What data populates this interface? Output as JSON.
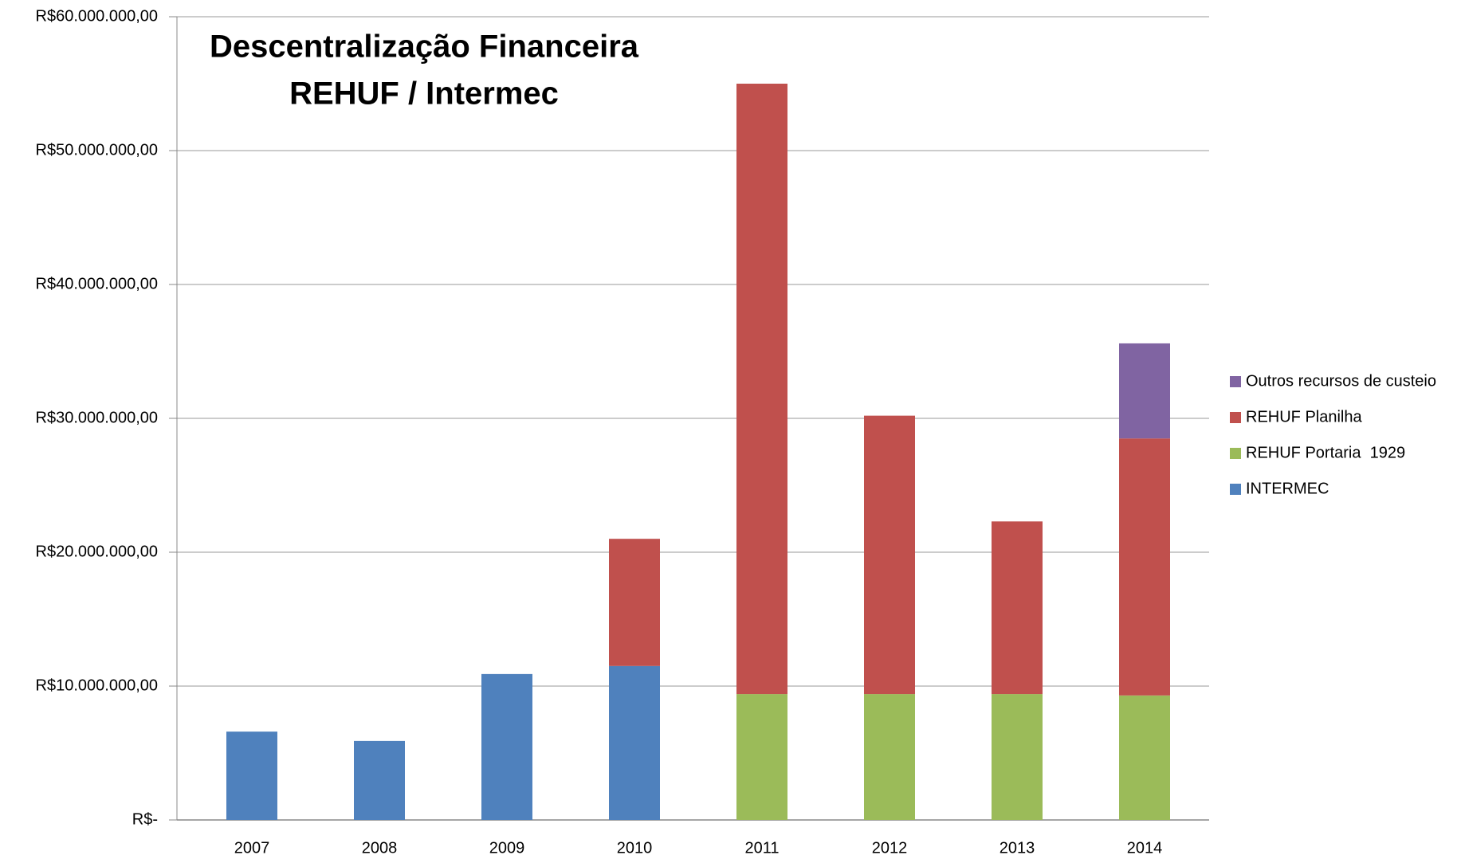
{
  "chart_data": {
    "type": "stacked-bar",
    "title": [
      "Descentralização Financeira",
      "REHUF / Intermec"
    ],
    "categories": [
      "2007",
      "2008",
      "2009",
      "2010",
      "2011",
      "2012",
      "2013",
      "2014"
    ],
    "series": [
      {
        "name": "INTERMEC",
        "color": "#4f81bd",
        "values": [
          6600000,
          5900000,
          10900000,
          11500000,
          null,
          null,
          null,
          null
        ]
      },
      {
        "name": "REHUF Portaria  1929",
        "color": "#9bbb59",
        "values": [
          null,
          null,
          null,
          null,
          9400000,
          9400000,
          9400000,
          9300000
        ]
      },
      {
        "name": "REHUF Planilha",
        "color": "#c0504d",
        "values": [
          null,
          null,
          null,
          9500000,
          45600000,
          20800000,
          12900000,
          19200000
        ]
      },
      {
        "name": "Outros recursos de custeio",
        "color": "#8064a2",
        "values": [
          null,
          null,
          null,
          null,
          null,
          null,
          null,
          7100000
        ]
      }
    ],
    "ylim": [
      0,
      60000000
    ],
    "yticks": [
      {
        "value": 0,
        "label": "R$-"
      },
      {
        "value": 10000000,
        "label": "R$10.000.000,00"
      },
      {
        "value": 20000000,
        "label": "R$20.000.000,00"
      },
      {
        "value": 30000000,
        "label": "R$30.000.000,00"
      },
      {
        "value": 40000000,
        "label": "R$40.000.000,00"
      },
      {
        "value": 50000000,
        "label": "R$50.000.000,00"
      },
      {
        "value": 60000000,
        "label": "R$60.000.000,00"
      }
    ],
    "grid": true,
    "legend": "right"
  }
}
